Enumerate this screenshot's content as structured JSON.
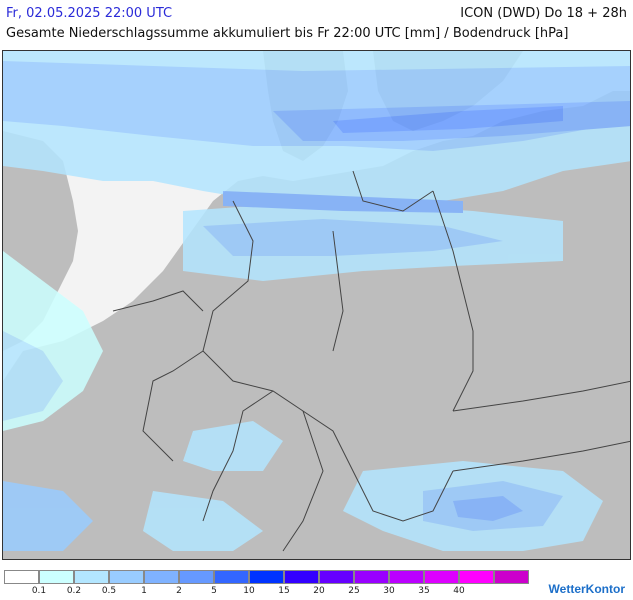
{
  "header": {
    "datetime": "Fr, 02.05.2025 22:00 UTC",
    "model": "ICON (DWD) Do 18 + 28h",
    "title": "Gesamte Niederschlagssumme akkumuliert bis Fr 22:00 UTC [mm] / Bodendruck [hPa]"
  },
  "legend": {
    "colors": [
      "#ffffff",
      "#ccffff",
      "#b3e6ff",
      "#99ccff",
      "#7fb2ff",
      "#6699ff",
      "#3366ff",
      "#0033ff",
      "#3300ff",
      "#6600ff",
      "#9900ff",
      "#bb00ff",
      "#dd00ff",
      "#ff00ff",
      "#cc00cc"
    ],
    "labels": [
      "0.1",
      "0.2",
      "0.5",
      "1",
      "2",
      "5",
      "10",
      "15",
      "20",
      "25",
      "30",
      "35",
      "40"
    ]
  },
  "brand": "WetterKontor",
  "colors": {
    "land": "#bdbdbd",
    "sea": "#f4f4f4",
    "border": "#444444"
  }
}
